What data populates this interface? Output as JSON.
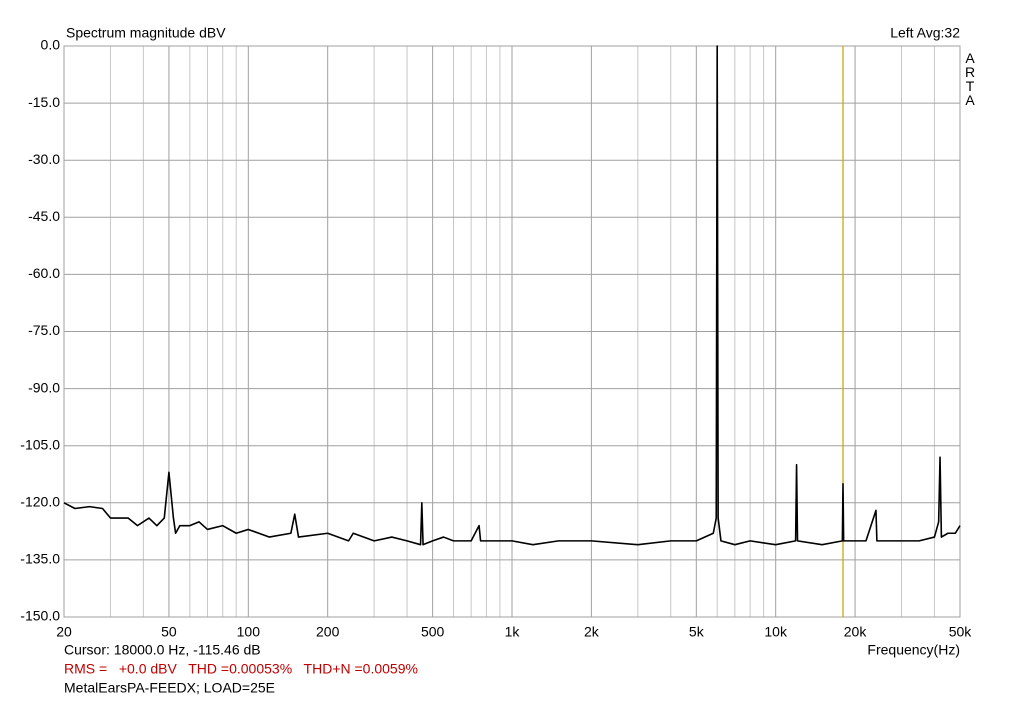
{
  "chart_data": {
    "type": "line",
    "title": "Spectrum magnitude dBV",
    "status": "Left  Avg:32",
    "brand": "ARTA",
    "x_label": "Frequency(Hz)",
    "cursor_text": "Cursor: 18000.0 Hz, -115.46 dB",
    "cursor_x": 18000,
    "cursor_color": "#c8a000",
    "measure_text": "RMS =   +0.0 dBV   THD =0.00053%   THD+N =0.0059%",
    "footer": "MetalEarsPA-FEEDX; LOAD=25E",
    "log_x": true,
    "grid": true,
    "xlim": [
      20,
      50000
    ],
    "ylim": [
      -150,
      0
    ],
    "xticks": [
      20,
      50,
      100,
      200,
      500,
      {
        "value": 1000,
        "label": "1k"
      },
      {
        "value": 2000,
        "label": "2k"
      },
      {
        "value": 5000,
        "label": "5k"
      },
      {
        "value": 10000,
        "label": "10k"
      },
      {
        "value": 20000,
        "label": "20k"
      },
      {
        "value": 50000,
        "label": "50k"
      }
    ],
    "x_minor_grid": [
      30,
      40,
      60,
      70,
      80,
      90,
      300,
      400,
      600,
      700,
      800,
      900,
      3000,
      4000,
      6000,
      7000,
      8000,
      9000,
      30000,
      40000
    ],
    "yticks": [
      {
        "value": 0,
        "label": "0.0"
      },
      {
        "value": -15,
        "label": "-15.0"
      },
      {
        "value": -30,
        "label": "-30.0"
      },
      {
        "value": -45,
        "label": "-45.0"
      },
      {
        "value": -60,
        "label": "-60.0"
      },
      {
        "value": -75,
        "label": "-75.0"
      },
      {
        "value": -90,
        "label": "-90.0"
      },
      {
        "value": -105,
        "label": "-105.0"
      },
      {
        "value": -120,
        "label": "-120.0"
      },
      {
        "value": -135,
        "label": "-135.0"
      },
      {
        "value": -150,
        "label": "-150.0"
      }
    ],
    "series": [
      {
        "name": "Left",
        "color": "#000000",
        "x": [
          20,
          22,
          25,
          28,
          30,
          35,
          38,
          42,
          45,
          48,
          50,
          52,
          53,
          55,
          60,
          65,
          70,
          80,
          90,
          100,
          120,
          145,
          150,
          155,
          200,
          240,
          250,
          300,
          350,
          400,
          450,
          455,
          460,
          500,
          550,
          600,
          700,
          750,
          760,
          900,
          1000,
          1200,
          1500,
          2000,
          3000,
          4000,
          5000,
          5800,
          5950,
          6000,
          6050,
          6200,
          7000,
          8000,
          10000,
          11900,
          12000,
          12100,
          15000,
          17900,
          18000,
          18100,
          22000,
          24000,
          24200,
          30000,
          35000,
          40000,
          41500,
          42000,
          42500,
          45000,
          48000,
          50000
        ],
        "values": [
          -120,
          -121.5,
          -121,
          -121.5,
          -124,
          -124,
          -126,
          -124,
          -126,
          -124,
          -112,
          -124,
          -128,
          -126,
          -126,
          -125,
          -127,
          -126,
          -128,
          -127,
          -129,
          -128,
          -123,
          -129,
          -128,
          -130,
          -128,
          -130,
          -129,
          -130,
          -131,
          -120,
          -131,
          -130,
          -129,
          -130,
          -130,
          -126,
          -130,
          -130,
          -130,
          -131,
          -130,
          -130,
          -131,
          -130,
          -130,
          -128,
          -124,
          0,
          -124,
          -130,
          -131,
          -130,
          -131,
          -130,
          -110,
          -130,
          -131,
          -130,
          -115,
          -130,
          -130,
          -122,
          -130,
          -130,
          -130,
          -129,
          -125,
          -108,
          -129,
          -128,
          -128,
          -126
        ]
      }
    ]
  }
}
